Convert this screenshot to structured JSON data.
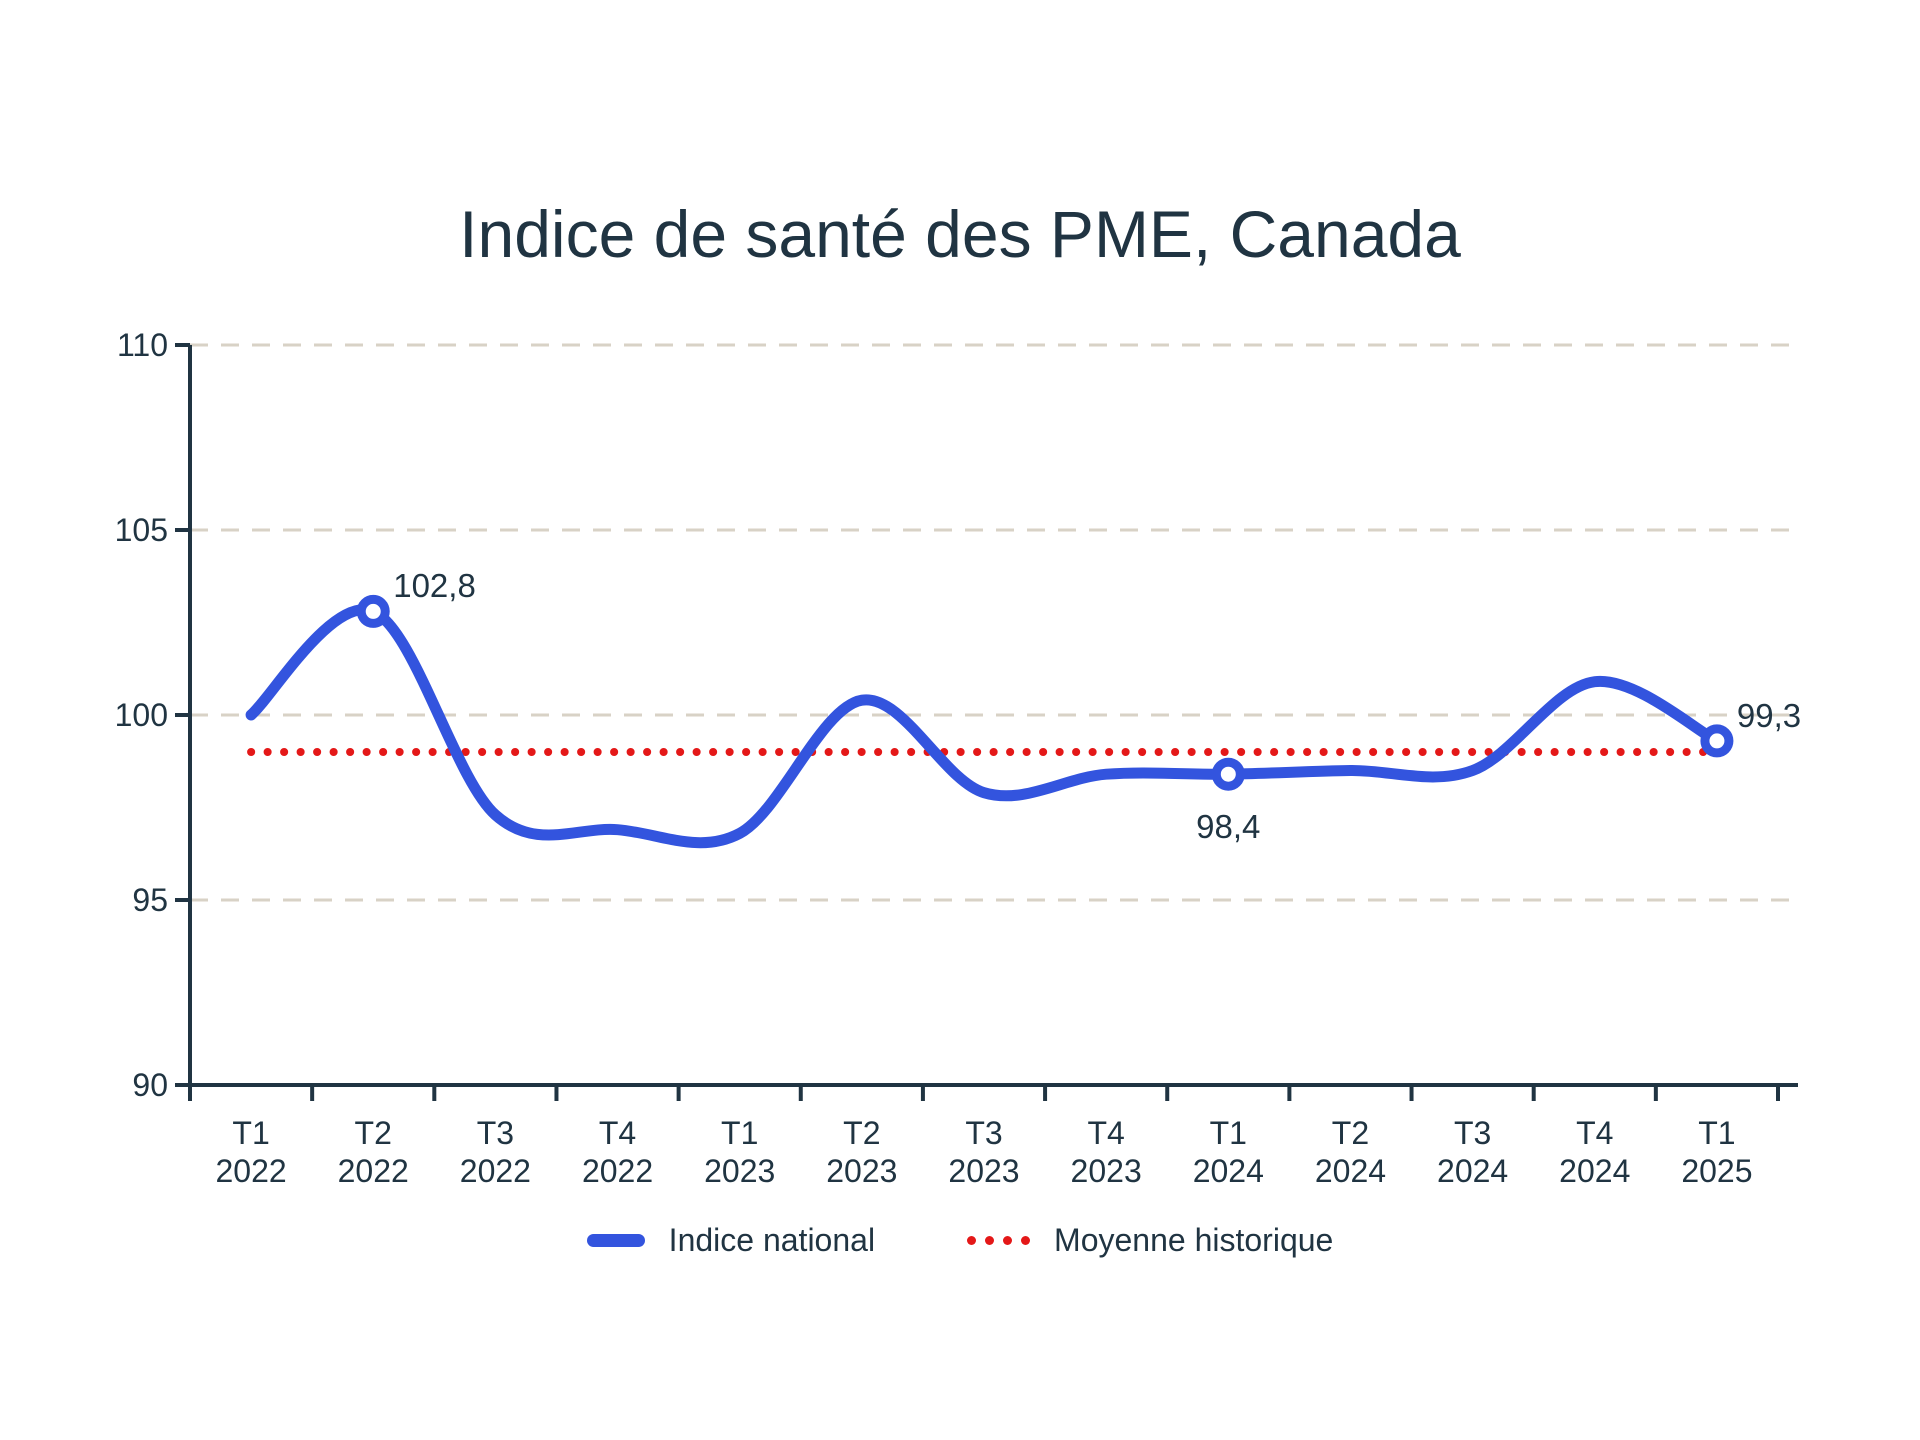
{
  "title": "Indice de santé des PME, Canada",
  "colors": {
    "background": "#ffffff",
    "text": "#203442",
    "axis": "#203442",
    "national_line": "#3354de",
    "average_line": "#e41818",
    "gridline": "#d8d2c6",
    "marker_fill": "#ffffff"
  },
  "legend": {
    "items": [
      {
        "label": "Indice national",
        "swatch": "line"
      },
      {
        "label": "Moyenne historique",
        "swatch": "dots"
      }
    ]
  },
  "chart_data": {
    "type": "line",
    "title": "Indice de santé des PME, Canada",
    "categories": [
      "T1 2022",
      "T2 2022",
      "T3 2022",
      "T4 2022",
      "T1 2023",
      "T2 2023",
      "T3 2023",
      "T4 2023",
      "T1 2024",
      "T2 2024",
      "T3 2024",
      "T4 2024",
      "T1 2025"
    ],
    "series": [
      {
        "name": "Indice national",
        "style": "smooth-line",
        "values": [
          100.0,
          102.8,
          97.3,
          96.9,
          96.8,
          100.4,
          97.9,
          98.4,
          98.4,
          98.5,
          98.5,
          100.9,
          99.3
        ]
      },
      {
        "name": "Moyenne historique",
        "style": "constant-dotted",
        "value": 99.0
      }
    ],
    "annotations": [
      {
        "category": "T2 2022",
        "index": 1,
        "value": 102.8,
        "label": "102,8",
        "position": "above-right",
        "marker": true
      },
      {
        "category": "T1 2024",
        "index": 8,
        "value": 98.4,
        "label": "98,4",
        "position": "below",
        "marker": true
      },
      {
        "category": "T1 2025",
        "index": 12,
        "value": 99.3,
        "label": "99,3",
        "position": "above-right",
        "marker": true
      }
    ],
    "ylim": [
      90,
      110
    ],
    "yticks": [
      110,
      105,
      100,
      95,
      90
    ],
    "xlabel": "",
    "ylabel": "",
    "grid": "horizontal-dashed",
    "legend_position": "bottom"
  }
}
